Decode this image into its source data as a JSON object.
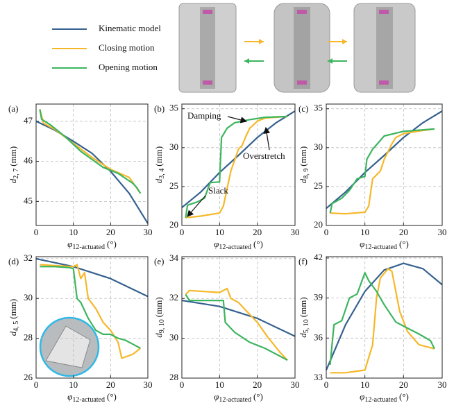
{
  "chart_data": [
    {
      "type": "line",
      "panel_label": "(a)",
      "ylabel": {
        "symbol": "d",
        "subscript": "2, 7",
        "unit": "(mm)"
      },
      "xlabel": {
        "symbol": "φ",
        "subscript": "12-actuated",
        "unit": "(°)"
      },
      "xlim": [
        0,
        30
      ],
      "xticks": [
        0,
        10,
        20,
        30
      ],
      "ylim": [
        44.4,
        47.43
      ],
      "yticks": [
        45,
        46,
        47
      ],
      "grid": true,
      "series": [
        {
          "name": "Kinematic model",
          "color": "#35618f",
          "x": [
            0,
            5,
            10,
            15,
            20,
            25,
            30
          ],
          "values": [
            47.0,
            46.78,
            46.5,
            46.2,
            45.75,
            45.2,
            44.45
          ]
        },
        {
          "name": "Closing motion",
          "color": "#f6b82a",
          "x": [
            1,
            2,
            5,
            10,
            15,
            20,
            25,
            28
          ],
          "values": [
            47.3,
            46.95,
            46.8,
            46.45,
            46.1,
            45.8,
            45.6,
            45.2
          ]
        },
        {
          "name": "Opening motion",
          "color": "#3cb55e",
          "x": [
            1,
            1.5,
            4,
            8,
            12,
            18,
            22,
            26,
            27,
            28
          ],
          "values": [
            47.3,
            47.05,
            46.9,
            46.6,
            46.25,
            45.85,
            45.7,
            45.45,
            45.35,
            45.2
          ]
        }
      ]
    },
    {
      "type": "line",
      "panel_label": "(b)",
      "ylabel": {
        "symbol": "d",
        "subscript": "3, 4",
        "unit": "(mm)"
      },
      "xlabel": {
        "symbol": "φ",
        "subscript": "12-actuated",
        "unit": "(°)"
      },
      "xlim": [
        0,
        30
      ],
      "xticks": [
        0,
        10,
        20,
        30
      ],
      "ylim": [
        20,
        35.6
      ],
      "yticks": [
        20,
        25,
        30,
        35
      ],
      "grid": true,
      "annotations": [
        "Damping",
        "Overstretch",
        "Slack"
      ],
      "series": [
        {
          "name": "Kinematic model",
          "color": "#35618f",
          "x": [
            0,
            5,
            10,
            15,
            20,
            25,
            30
          ],
          "values": [
            22.3,
            24.3,
            26.8,
            29.0,
            31.3,
            33.2,
            34.7
          ]
        },
        {
          "name": "Closing motion",
          "color": "#f6b82a",
          "x": [
            1,
            5,
            10,
            11,
            13,
            15,
            16,
            17,
            18,
            20,
            22,
            28
          ],
          "values": [
            21.0,
            21.2,
            21.6,
            22.5,
            27,
            29.8,
            30.3,
            31.5,
            32.5,
            33.4,
            33.8,
            34.0
          ]
        },
        {
          "name": "Opening motion",
          "color": "#3cb55e",
          "x": [
            1,
            1.5,
            4,
            6,
            7.5,
            10,
            10.5,
            12,
            14,
            18,
            22,
            28
          ],
          "values": [
            21.0,
            22.6,
            23.0,
            23.5,
            25.5,
            25.6,
            31.3,
            32.5,
            33.2,
            33.6,
            33.9,
            34.0
          ]
        }
      ]
    },
    {
      "type": "line",
      "panel_label": "(c)",
      "ylabel": {
        "symbol": "d",
        "subscript": "8, 9",
        "unit": "(mm)"
      },
      "xlabel": {
        "symbol": "φ",
        "subscript": "12-actuated",
        "unit": "(°)"
      },
      "xlim": [
        0,
        30
      ],
      "xticks": [
        0,
        10,
        20,
        30
      ],
      "ylim": [
        20,
        35.6
      ],
      "yticks": [
        20,
        25,
        30,
        35
      ],
      "grid": true,
      "series": [
        {
          "name": "Kinematic model",
          "color": "#35618f",
          "x": [
            0,
            5,
            10,
            15,
            20,
            25,
            30
          ],
          "values": [
            22.2,
            24.3,
            26.8,
            29.0,
            31.3,
            33.2,
            34.7
          ]
        },
        {
          "name": "Closing motion",
          "color": "#f6b82a",
          "x": [
            1,
            5,
            10,
            11,
            12,
            14,
            15,
            17,
            18,
            20,
            25,
            28
          ],
          "values": [
            21.6,
            21.5,
            21.7,
            22.5,
            26,
            27,
            28.5,
            30.5,
            31.3,
            31.8,
            32.2,
            32.4
          ]
        },
        {
          "name": "Opening motion",
          "color": "#3cb55e",
          "x": [
            1,
            1.5,
            4,
            6,
            8,
            10,
            10.5,
            12,
            15,
            20,
            28
          ],
          "values": [
            21.6,
            22.8,
            23.5,
            24.5,
            26,
            26.3,
            28.5,
            29.8,
            31.5,
            32.1,
            32.4
          ]
        }
      ]
    },
    {
      "type": "line",
      "panel_label": "(d)",
      "ylabel": {
        "symbol": "d",
        "subscript": "4, 5",
        "unit": "(mm)"
      },
      "xlabel": {
        "symbol": "φ",
        "subscript": "12-actuated",
        "unit": "(°)"
      },
      "xlim": [
        0,
        30
      ],
      "xticks": [
        0,
        10,
        20,
        30
      ],
      "ylim": [
        26,
        32.1
      ],
      "yticks": [
        26,
        28,
        30,
        32
      ],
      "grid": true,
      "series": [
        {
          "name": "Kinematic model",
          "color": "#35618f",
          "x": [
            0,
            10,
            20,
            30
          ],
          "values": [
            32.0,
            31.6,
            31.0,
            30.1
          ]
        },
        {
          "name": "Closing motion",
          "color": "#f6b82a",
          "x": [
            1,
            5,
            10,
            11,
            12,
            13,
            14,
            16,
            18,
            20,
            22,
            23,
            26,
            28
          ],
          "values": [
            31.7,
            31.65,
            31.6,
            31.7,
            31.0,
            31.3,
            30.0,
            29.5,
            28.8,
            28.4,
            27.8,
            27.0,
            27.2,
            27.5
          ]
        },
        {
          "name": "Opening motion",
          "color": "#3cb55e",
          "x": [
            1,
            5,
            9,
            10,
            11,
            12,
            14,
            16,
            18,
            20,
            22,
            24,
            26,
            28
          ],
          "values": [
            31.6,
            31.6,
            31.55,
            31.5,
            30.0,
            29.8,
            29.0,
            28.4,
            28.2,
            28.2,
            28.0,
            27.9,
            27.7,
            27.5
          ]
        }
      ]
    },
    {
      "type": "line",
      "panel_label": "(e)",
      "ylabel": {
        "symbol": "d",
        "subscript": "9, 10",
        "unit": "(mm)"
      },
      "xlabel": {
        "symbol": "φ",
        "subscript": "12-actuated",
        "unit": "(°)"
      },
      "xlim": [
        0,
        30
      ],
      "xticks": [
        0,
        10,
        20,
        30
      ],
      "ylim": [
        28,
        34.1
      ],
      "yticks": [
        28,
        30,
        32,
        34
      ],
      "grid": true,
      "series": [
        {
          "name": "Kinematic model",
          "color": "#35618f",
          "x": [
            0,
            10,
            20,
            30
          ],
          "values": [
            31.9,
            31.6,
            31.0,
            30.1
          ]
        },
        {
          "name": "Closing motion",
          "color": "#f6b82a",
          "x": [
            1,
            2,
            10,
            12,
            13,
            15,
            18,
            20,
            23,
            26,
            28
          ],
          "values": [
            32.2,
            32.4,
            32.3,
            32.5,
            32.0,
            31.8,
            31.2,
            30.8,
            30.0,
            29.3,
            28.9
          ]
        },
        {
          "name": "Opening motion",
          "color": "#3cb55e",
          "x": [
            1,
            2,
            8,
            11,
            11.5,
            14,
            18,
            22,
            26,
            28
          ],
          "values": [
            32.2,
            31.9,
            31.9,
            31.9,
            30.8,
            30.3,
            29.8,
            29.5,
            29.1,
            28.9
          ]
        }
      ]
    },
    {
      "type": "line",
      "panel_label": "(f)",
      "ylabel": {
        "symbol": "d",
        "subscript": "5, 10",
        "unit": "(mm)"
      },
      "xlabel": {
        "symbol": "φ",
        "subscript": "12-actuated",
        "unit": "(°)"
      },
      "xlim": [
        0,
        30
      ],
      "xticks": [
        0,
        10,
        20,
        30
      ],
      "ylim": [
        33,
        42.1
      ],
      "yticks": [
        33,
        36,
        39,
        42
      ],
      "grid": true,
      "series": [
        {
          "name": "Kinematic model",
          "color": "#35618f",
          "x": [
            0,
            5,
            10,
            15,
            20,
            25,
            30
          ],
          "values": [
            33.6,
            37.0,
            39.5,
            41.1,
            41.6,
            41.2,
            40.0
          ]
        },
        {
          "name": "Closing motion",
          "color": "#f6b82a",
          "x": [
            1,
            5,
            10,
            12,
            13,
            14,
            16,
            17,
            18,
            19,
            21,
            24,
            28
          ],
          "values": [
            33.4,
            33.4,
            33.6,
            35.5,
            39,
            40.5,
            41.2,
            41.0,
            39.5,
            38,
            36.5,
            35.5,
            35.2
          ]
        },
        {
          "name": "Opening motion",
          "color": "#3cb55e",
          "x": [
            1,
            2,
            4,
            6,
            8,
            10,
            11,
            13,
            15,
            18,
            20,
            24,
            27,
            28
          ],
          "values": [
            34,
            37,
            37.3,
            39.0,
            39.3,
            40.9,
            40.3,
            39.5,
            38.5,
            37.2,
            36.9,
            36.3,
            35.8,
            35.2
          ]
        }
      ]
    }
  ]
}
